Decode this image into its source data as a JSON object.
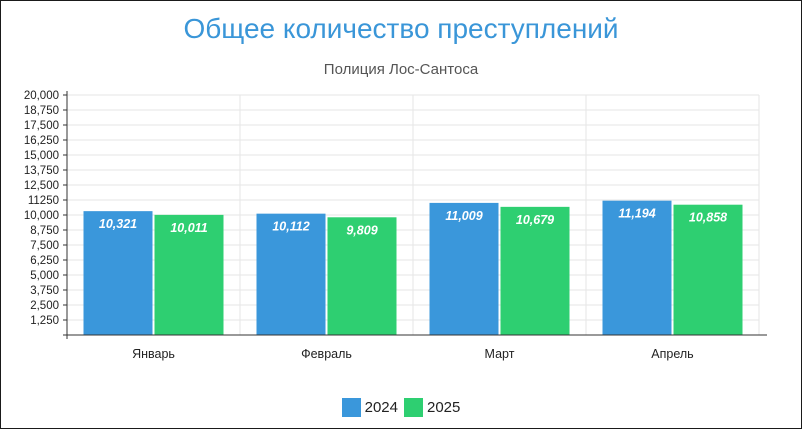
{
  "chart_data": {
    "type": "bar",
    "title": "Общее количество преступлений",
    "subtitle": "Полиция Лос-Сантоса",
    "categories": [
      "Январь",
      "Февраль",
      "Март",
      "Апрель"
    ],
    "series": [
      {
        "name": "2024",
        "color": "#3a97db",
        "values": [
          10321,
          10112,
          11009,
          11194
        ],
        "labels": [
          "10,321",
          "10,112",
          "11,009",
          "11,194"
        ]
      },
      {
        "name": "2025",
        "color": "#2ecf71",
        "values": [
          10011,
          9809,
          10679,
          10858
        ],
        "labels": [
          "10,011",
          "9,809",
          "10,679",
          "10,858"
        ]
      }
    ],
    "yticks": [
      1250,
      2500,
      3750,
      5000,
      6250,
      7500,
      8750,
      10000,
      11250,
      12500,
      13750,
      15000,
      16250,
      17500,
      18750,
      20000
    ],
    "ytick_labels": [
      "1,250",
      "2,500",
      "3,750",
      "5,000",
      "6,250",
      "7,500",
      "8,750",
      "10,000",
      "11250",
      "12,500",
      "13,750",
      "15,000",
      "16,250",
      "17,500",
      "18,750",
      "20,000"
    ],
    "ylim": [
      0,
      20000
    ],
    "grid": true,
    "legend": "bottom-center",
    "xlabel": "",
    "ylabel": ""
  }
}
